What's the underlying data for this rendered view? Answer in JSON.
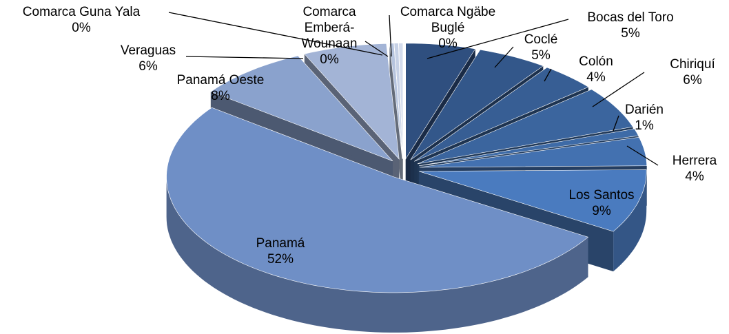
{
  "chart_data": {
    "type": "pie",
    "categories": [
      "Bocas del Toro",
      "Coclé",
      "Colón",
      "Chiriquí",
      "Darién",
      "Herrera",
      "Los Santos",
      "Panamá",
      "Panamá Oeste",
      "Veraguas",
      "Comarca Guna Yala",
      "Comarca Emberá-Wounaan",
      "Comarca Ngäbe Buglé"
    ],
    "values": [
      5,
      5,
      4,
      6,
      1,
      4,
      9,
      52,
      8,
      6,
      0.3,
      0.3,
      0.3
    ],
    "value_labels": [
      "5%",
      "5%",
      "4%",
      "6%",
      "1%",
      "4%",
      "9%",
      "52%",
      "8%",
      "6%",
      "0%",
      "0%",
      "0%"
    ],
    "colors": [
      "#2f4f7f",
      "#33578a",
      "#375e94",
      "#3b659e",
      "#3e6ba7",
      "#4371b0",
      "#4a7bbf",
      "#6f8fc6",
      "#8aa2cd",
      "#a3b4d6",
      "#b6c4de",
      "#c6d1e6",
      "#d4dced"
    ]
  }
}
